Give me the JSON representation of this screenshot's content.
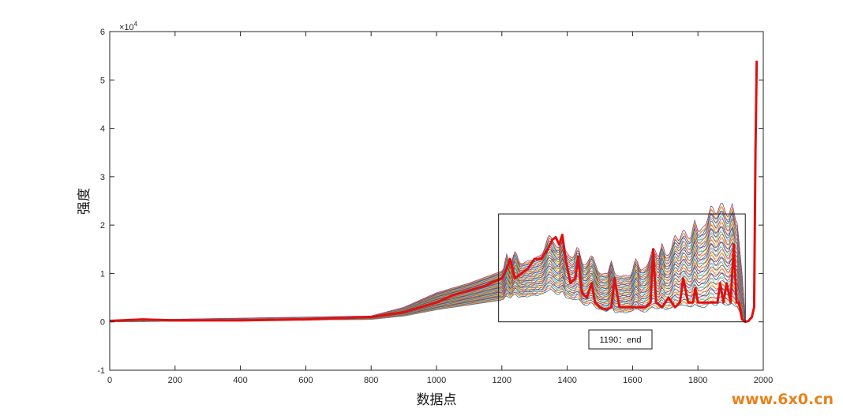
{
  "chart_data": {
    "type": "line",
    "xlabel": "数据点",
    "ylabel": "强度",
    "exponent_prefix": "×10",
    "exponent_power": "4",
    "xlim": [
      0,
      2000
    ],
    "ylim": [
      -1,
      6
    ],
    "x_ticks": [
      "0",
      "200",
      "400",
      "600",
      "800",
      "1000",
      "1200",
      "1400",
      "1600",
      "1800",
      "2000"
    ],
    "y_ticks": [
      "-1",
      "0",
      "1",
      "2",
      "3",
      "4",
      "5",
      "6"
    ],
    "grid": false,
    "highlight_series": {
      "color": "#e01010",
      "x": [
        0,
        100,
        200,
        400,
        600,
        800,
        900,
        950,
        1000,
        1050,
        1100,
        1150,
        1200,
        1215,
        1225,
        1240,
        1260,
        1280,
        1300,
        1320,
        1340,
        1355,
        1365,
        1375,
        1385,
        1395,
        1410,
        1425,
        1433,
        1445,
        1460,
        1475,
        1485,
        1500,
        1520,
        1535,
        1545,
        1560,
        1580,
        1600,
        1620,
        1640,
        1655,
        1663,
        1672,
        1690,
        1710,
        1730,
        1745,
        1755,
        1770,
        1785,
        1792,
        1800,
        1820,
        1840,
        1860,
        1868,
        1878,
        1888,
        1900,
        1910,
        1918,
        1925,
        1935,
        1945,
        1955,
        1965,
        1972,
        1976,
        1980
      ],
      "y": [
        0.02,
        0.05,
        0.03,
        0.03,
        0.05,
        0.1,
        0.2,
        0.3,
        0.4,
        0.55,
        0.65,
        0.75,
        0.9,
        1.1,
        1.3,
        0.9,
        1.0,
        1.1,
        1.3,
        1.3,
        1.5,
        1.7,
        1.75,
        1.6,
        1.8,
        1.3,
        0.8,
        0.9,
        1.35,
        0.6,
        0.5,
        0.8,
        0.4,
        0.3,
        0.25,
        0.3,
        0.9,
        0.3,
        0.3,
        0.3,
        0.3,
        0.3,
        0.4,
        1.5,
        0.4,
        0.3,
        0.5,
        0.3,
        0.4,
        0.9,
        0.4,
        0.4,
        0.7,
        0.4,
        0.4,
        0.4,
        0.4,
        0.8,
        0.4,
        0.8,
        0.4,
        1.6,
        0.4,
        0.4,
        0.05,
        0.0,
        0.02,
        0.1,
        0.3,
        3.5,
        5.4
      ]
    },
    "envelope": {
      "x": [
        0,
        800,
        900,
        1000,
        1100,
        1200,
        1300,
        1360,
        1400,
        1450,
        1500,
        1550,
        1600,
        1650,
        1700,
        1750,
        1800,
        1850,
        1900,
        1920,
        1935,
        1945
      ],
      "upper": [
        0.03,
        0.12,
        0.3,
        0.6,
        0.8,
        1.05,
        1.3,
        1.55,
        1.4,
        1.15,
        1.0,
        0.95,
        0.95,
        1.15,
        1.35,
        1.55,
        1.85,
        2.15,
        2.15,
        2.05,
        1.0,
        0.0
      ],
      "lower": [
        0.0,
        0.05,
        0.12,
        0.25,
        0.35,
        0.45,
        0.55,
        0.6,
        0.5,
        0.35,
        0.25,
        0.2,
        0.2,
        0.22,
        0.25,
        0.28,
        0.3,
        0.32,
        0.32,
        0.3,
        0.1,
        0.0
      ]
    },
    "annotation": {
      "text": "1190：end",
      "x_range": [
        1190,
        1945
      ],
      "y_range": [
        0,
        2.23
      ]
    }
  },
  "watermark": "www.6x0.cn",
  "colors": {
    "highlight": "#e01010",
    "series_palette": [
      "#0072bd",
      "#d95319",
      "#edb120",
      "#7e2f8e",
      "#77ac30",
      "#4dbeee",
      "#a2142f"
    ]
  }
}
